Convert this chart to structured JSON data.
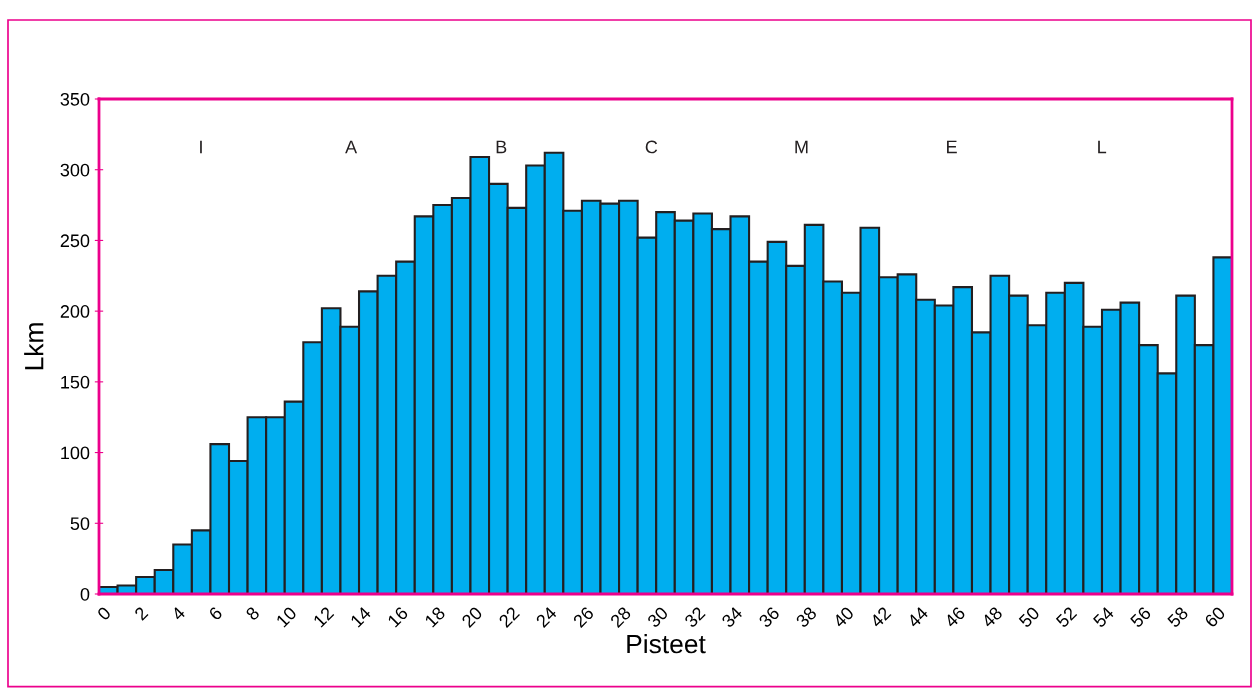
{
  "chart_data": {
    "type": "bar",
    "xlabel": "Pisteet",
    "ylabel": "Lkm",
    "categories": [
      "0",
      null,
      "2",
      null,
      "4",
      null,
      "6",
      null,
      "8",
      null,
      "10",
      null,
      "12",
      null,
      "14",
      null,
      "16",
      null,
      "18",
      null,
      "20",
      null,
      "22",
      null,
      "24",
      null,
      "26",
      null,
      "28",
      null,
      "30",
      null,
      "32",
      null,
      "34",
      null,
      "36",
      null,
      "38",
      null,
      "40",
      null,
      "42",
      null,
      "44",
      null,
      "46",
      null,
      "48",
      null,
      "50",
      null,
      "52",
      null,
      "54",
      null,
      "56",
      null,
      "58",
      null,
      "60"
    ],
    "values": [
      5,
      6,
      12,
      17,
      35,
      45,
      106,
      94,
      125,
      125,
      136,
      178,
      202,
      189,
      214,
      225,
      235,
      267,
      275,
      280,
      309,
      290,
      273,
      303,
      312,
      271,
      278,
      276,
      278,
      252,
      270,
      264,
      269,
      258,
      267,
      235,
      249,
      232,
      261,
      221,
      213,
      259,
      224,
      226,
      208,
      204,
      217,
      185,
      225,
      211,
      190,
      213,
      220,
      189,
      201,
      206,
      176,
      156,
      211,
      176,
      238
    ],
    "color": "#00aeef",
    "ylim": [
      0,
      350
    ],
    "yticks": [
      0,
      50,
      100,
      150,
      200,
      250,
      300,
      350
    ],
    "annotations": [
      "I",
      "A",
      "B",
      "C",
      "M",
      "E",
      "L"
    ],
    "grid": false,
    "legend": false
  }
}
